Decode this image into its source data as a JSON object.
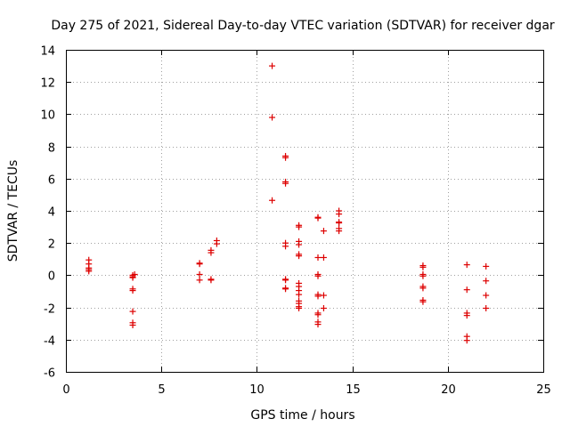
{
  "chart_data": {
    "type": "scatter",
    "title": "Day 275 of 2021, Sidereal Day-to-day VTEC variation (SDTVAR) for receiver dgar",
    "xlabel": "GPS time / hours",
    "ylabel": "SDTVAR / TECUs",
    "xlim": [
      0,
      25
    ],
    "ylim": [
      -6,
      14
    ],
    "xticks": [
      0,
      5,
      10,
      15,
      20,
      25
    ],
    "yticks": [
      -6,
      -4,
      -2,
      0,
      2,
      4,
      6,
      8,
      10,
      12,
      14
    ],
    "grid": true,
    "marker": "+",
    "color": "#dd0000",
    "series": [
      {
        "name": "SDTVAR",
        "points": [
          [
            1.2,
            0.95
          ],
          [
            1.2,
            0.7
          ],
          [
            1.2,
            0.45
          ],
          [
            1.2,
            0.35
          ],
          [
            1.2,
            0.25
          ],
          [
            3.5,
            0.0
          ],
          [
            3.5,
            -0.1
          ],
          [
            3.5,
            -0.15
          ],
          [
            3.6,
            0.05
          ],
          [
            3.5,
            -0.85
          ],
          [
            3.5,
            -0.95
          ],
          [
            3.5,
            -2.25
          ],
          [
            3.5,
            -2.95
          ],
          [
            3.5,
            -3.1
          ],
          [
            7.0,
            0.75
          ],
          [
            7.0,
            0.7
          ],
          [
            7.0,
            0.05
          ],
          [
            7.0,
            -0.3
          ],
          [
            7.6,
            1.55
          ],
          [
            7.6,
            1.4
          ],
          [
            7.6,
            -0.25
          ],
          [
            7.6,
            -0.3
          ],
          [
            7.9,
            2.15
          ],
          [
            7.9,
            1.95
          ],
          [
            10.8,
            13.0
          ],
          [
            10.8,
            9.8
          ],
          [
            10.8,
            4.65
          ],
          [
            11.5,
            7.4
          ],
          [
            11.5,
            7.3
          ],
          [
            11.5,
            5.8
          ],
          [
            11.5,
            5.7
          ],
          [
            11.5,
            2.0
          ],
          [
            11.5,
            1.8
          ],
          [
            11.5,
            -0.25
          ],
          [
            11.5,
            -0.3
          ],
          [
            11.5,
            -0.8
          ],
          [
            11.5,
            -0.85
          ],
          [
            12.2,
            3.1
          ],
          [
            12.2,
            3.0
          ],
          [
            12.2,
            2.1
          ],
          [
            12.2,
            1.9
          ],
          [
            12.2,
            1.3
          ],
          [
            12.2,
            1.2
          ],
          [
            12.2,
            -0.5
          ],
          [
            12.2,
            -0.7
          ],
          [
            12.2,
            -0.95
          ],
          [
            12.2,
            -1.2
          ],
          [
            12.2,
            -1.6
          ],
          [
            12.2,
            -1.75
          ],
          [
            12.2,
            -1.95
          ],
          [
            12.2,
            -2.05
          ],
          [
            13.2,
            3.6
          ],
          [
            13.2,
            3.55
          ],
          [
            13.2,
            1.1
          ],
          [
            13.2,
            0.05
          ],
          [
            13.2,
            -0.05
          ],
          [
            13.2,
            -1.2
          ],
          [
            13.2,
            -1.3
          ],
          [
            13.2,
            -2.35
          ],
          [
            13.2,
            -2.45
          ],
          [
            13.2,
            -2.9
          ],
          [
            13.2,
            -3.05
          ],
          [
            13.5,
            2.75
          ],
          [
            13.5,
            1.1
          ],
          [
            13.5,
            -1.25
          ],
          [
            13.5,
            -2.05
          ],
          [
            14.3,
            4.0
          ],
          [
            14.3,
            3.8
          ],
          [
            14.3,
            3.3
          ],
          [
            14.3,
            3.25
          ],
          [
            14.3,
            2.9
          ],
          [
            14.3,
            2.75
          ],
          [
            18.7,
            0.6
          ],
          [
            18.7,
            0.5
          ],
          [
            18.7,
            0.05
          ],
          [
            18.7,
            -0.05
          ],
          [
            18.7,
            -0.7
          ],
          [
            18.7,
            -0.8
          ],
          [
            18.7,
            -1.55
          ],
          [
            18.7,
            -1.65
          ],
          [
            21.0,
            0.65
          ],
          [
            21.0,
            -0.9
          ],
          [
            21.0,
            -2.35
          ],
          [
            21.0,
            -2.5
          ],
          [
            21.0,
            -3.8
          ],
          [
            21.0,
            -4.05
          ],
          [
            22.0,
            0.55
          ],
          [
            22.0,
            -0.35
          ],
          [
            22.0,
            -1.25
          ],
          [
            22.0,
            -2.05
          ]
        ]
      }
    ]
  }
}
